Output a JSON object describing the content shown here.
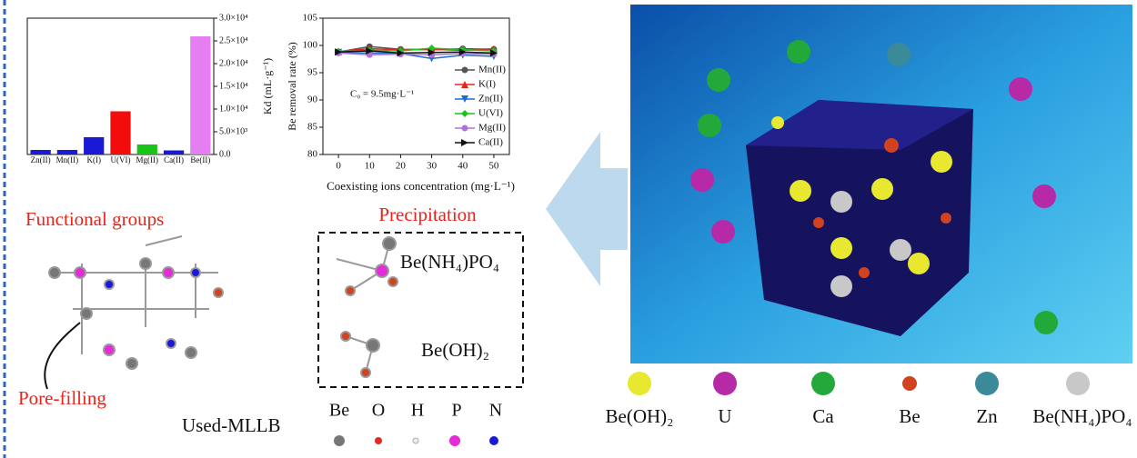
{
  "chart_data": [
    {
      "type": "bar",
      "categories": [
        "Zn(II)",
        "Mn(II)",
        "K(I)",
        "U(VI)",
        "Mg(II)",
        "Ca(II)",
        "Be(II)"
      ],
      "values": [
        1000,
        1000,
        3800,
        9500,
        2200,
        900,
        26000
      ],
      "colors": [
        "#1a1ad6",
        "#1a1ad6",
        "#1a1ad6",
        "#f20c0c",
        "#18c418",
        "#1a1ad6",
        "#e57ef0"
      ],
      "ylabel": "Kd (mL·g⁻¹)",
      "ylim": [
        0,
        30000
      ],
      "yticks": [
        {
          "value": 0,
          "label": "0.0"
        },
        {
          "value": 5000,
          "label": "5.0×10³"
        },
        {
          "value": 10000,
          "label": "1.0×10⁴"
        },
        {
          "value": 15000,
          "label": "1.5×10⁴"
        },
        {
          "value": 20000,
          "label": "2.0×10⁴"
        },
        {
          "value": 25000,
          "label": "2.5×10⁴"
        },
        {
          "value": 30000,
          "label": "3.0×10⁴"
        }
      ]
    },
    {
      "type": "line",
      "x": [
        0,
        10,
        20,
        30,
        40,
        50
      ],
      "xlabel": "Coexisting ions concentration (mg·L⁻¹)",
      "ylabel": "Be removal rate (%)",
      "annotation": "C₀ = 9.5mg·L⁻¹",
      "xlim": [
        -5,
        55
      ],
      "xticks": [
        0,
        10,
        20,
        30,
        40,
        50
      ],
      "ylim": [
        80,
        105
      ],
      "yticks": [
        80,
        85,
        90,
        95,
        100,
        105
      ],
      "legend": "right",
      "series": [
        {
          "name": "Mn(II)",
          "color": "#555555",
          "marker": "circle",
          "values": [
            98.8,
            99.8,
            99.3,
            99.2,
            99.4,
            99.3
          ]
        },
        {
          "name": "K(I)",
          "color": "#e8231b",
          "marker": "triangle-up",
          "values": [
            98.9,
            99.4,
            99.2,
            99.3,
            99.1,
            99.4
          ]
        },
        {
          "name": "Zn(II)",
          "color": "#1f6fd1",
          "marker": "triangle-down",
          "values": [
            98.7,
            98.6,
            98.5,
            97.6,
            98.2,
            98.0
          ]
        },
        {
          "name": "U(VI)",
          "color": "#18c418",
          "marker": "diamond",
          "values": [
            98.9,
            99.1,
            99.0,
            99.5,
            99.2,
            99.0
          ]
        },
        {
          "name": "Mg(II)",
          "color": "#b070e0",
          "marker": "circle",
          "values": [
            98.6,
            98.3,
            98.4,
            98.3,
            98.5,
            98.4
          ]
        },
        {
          "name": "Ca(II)",
          "color": "#111111",
          "marker": "triangle-right",
          "values": [
            98.8,
            99.0,
            98.6,
            98.7,
            98.8,
            98.6
          ]
        }
      ]
    }
  ],
  "molecule": {
    "functional_groups": "Functional groups",
    "pore_filling": "Pore-filling",
    "name": "Used-MLLB",
    "atoms": [
      "Be",
      "O",
      "H",
      "P",
      "N"
    ]
  },
  "precipitation": {
    "title": "Precipitation",
    "products": [
      "Be(NH₄)PO₄",
      "Be(OH)₂"
    ]
  },
  "image_legend": [
    "Be(OH)₂",
    "U",
    "Ca",
    "Be",
    "Zn",
    "Be(NH₄)PO₄"
  ]
}
